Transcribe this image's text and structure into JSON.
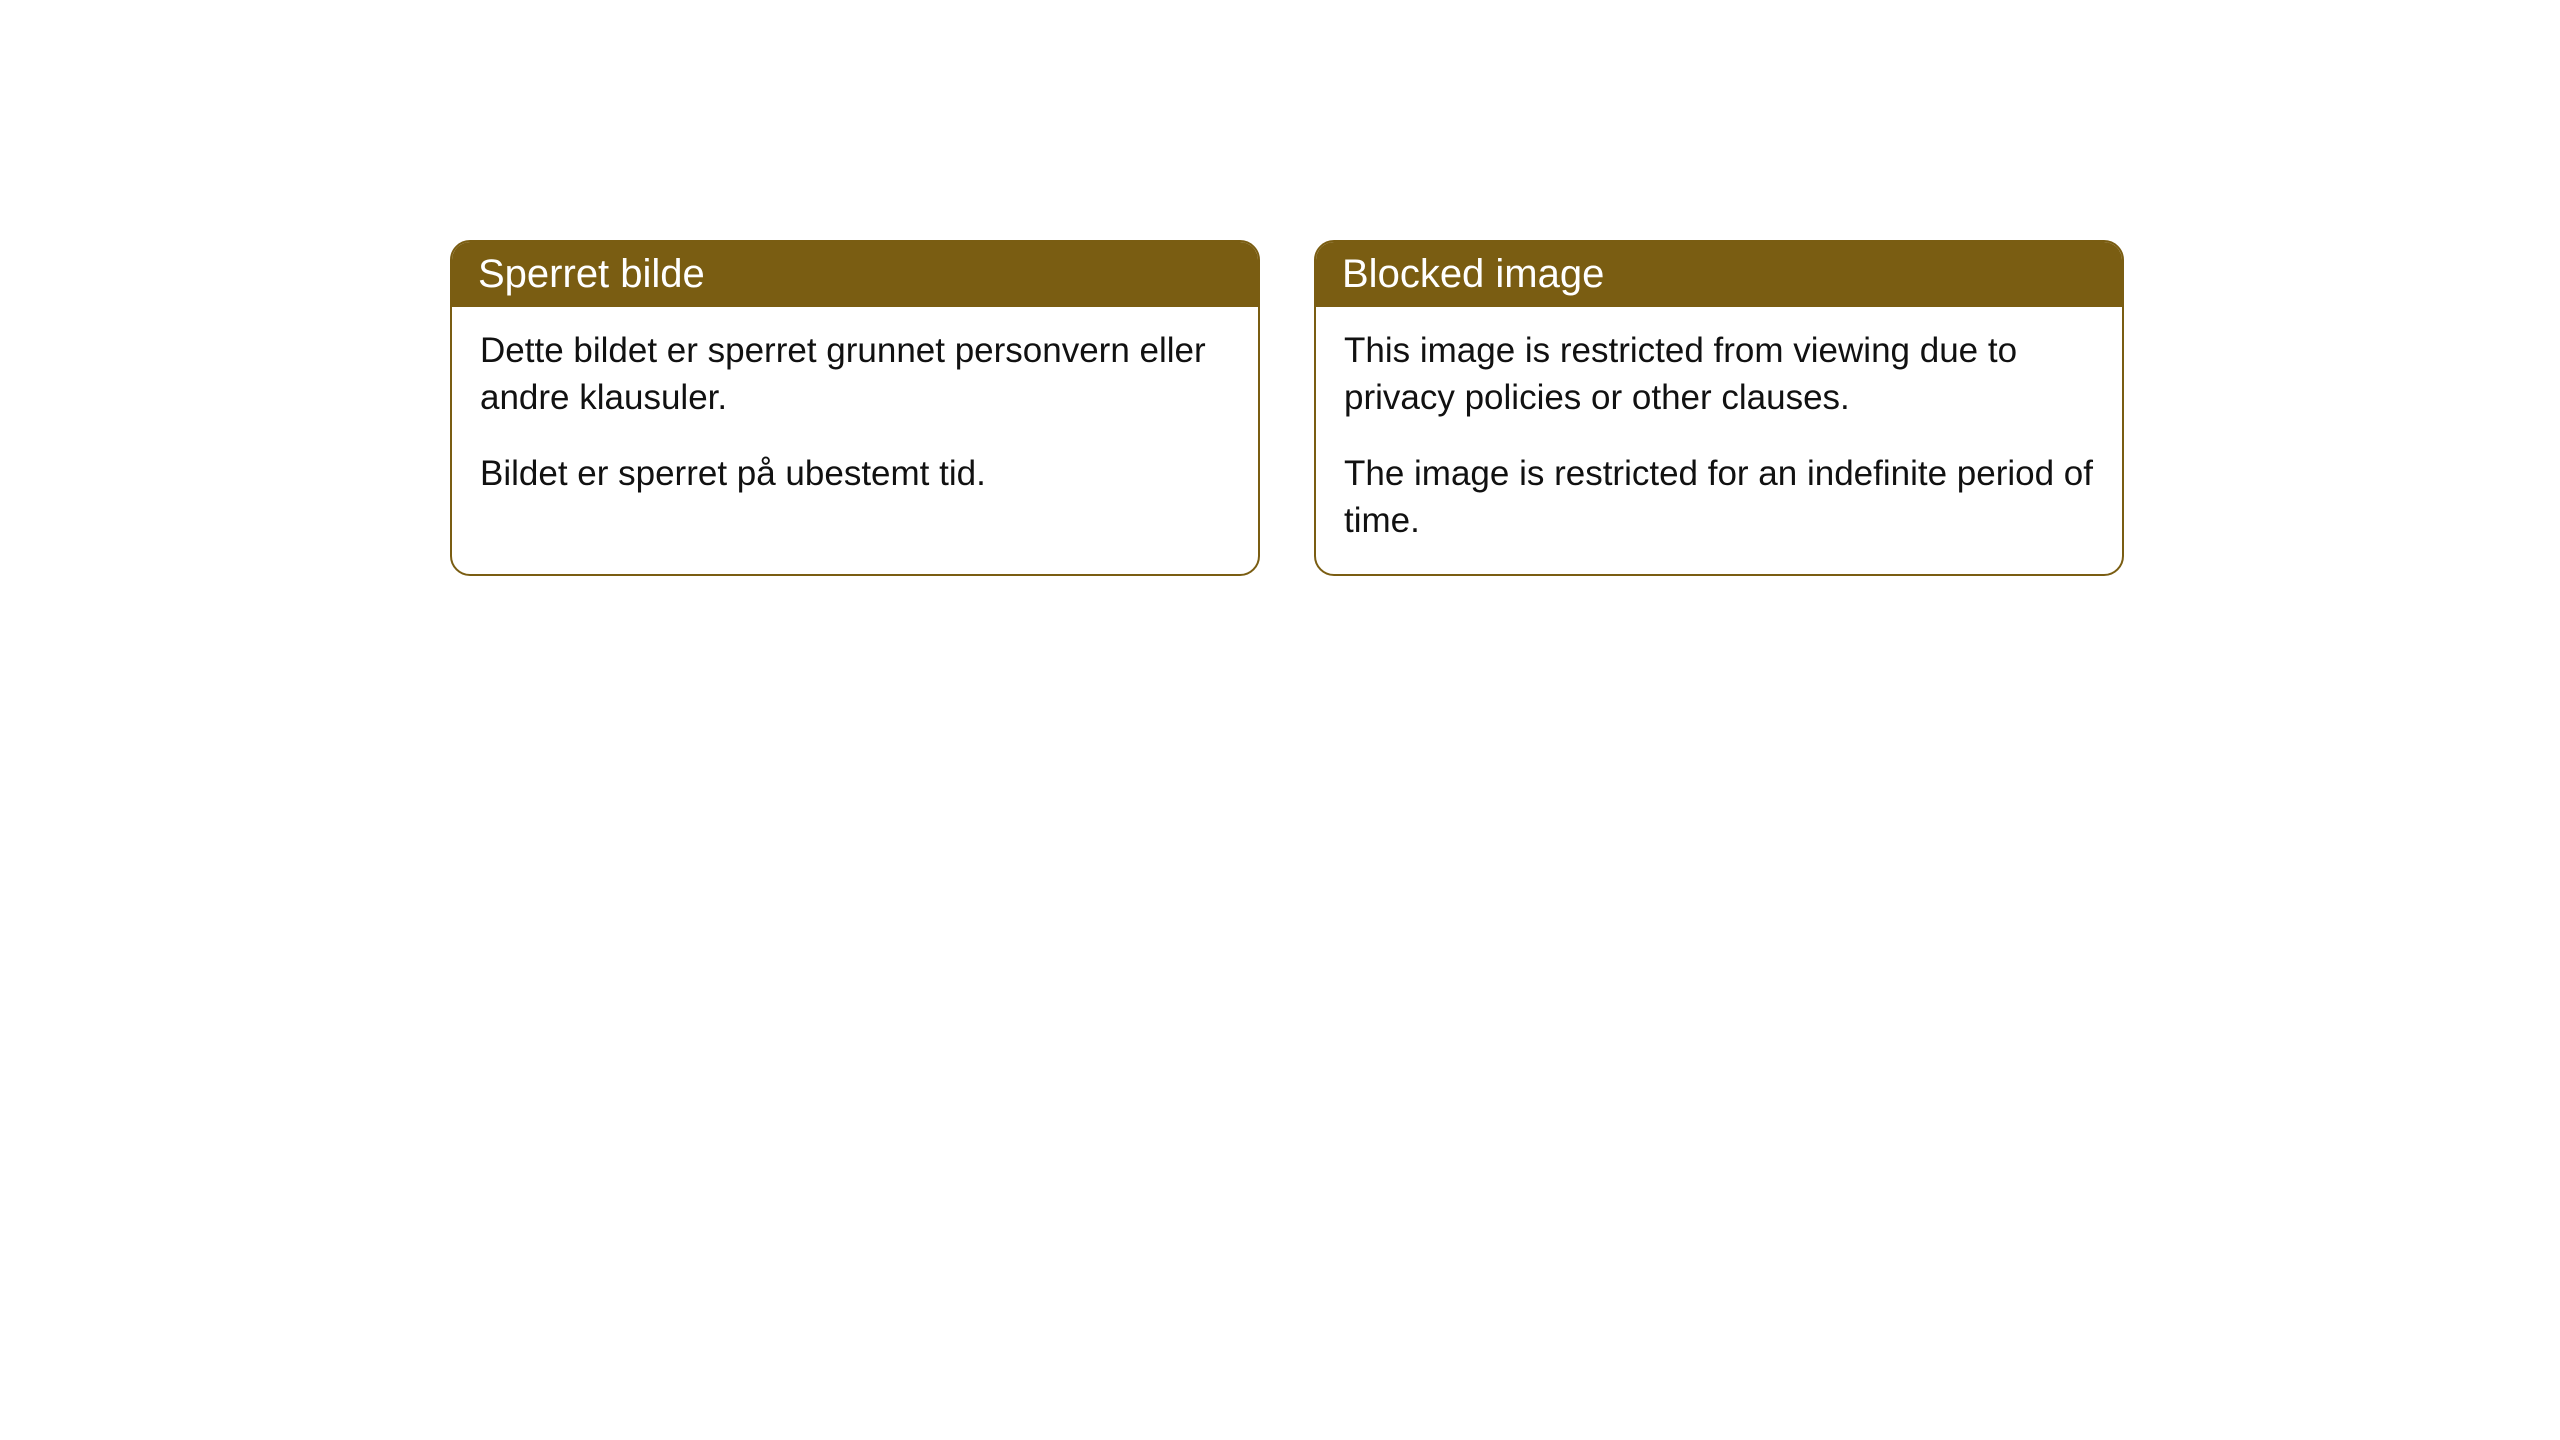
{
  "cards": [
    {
      "title": "Sperret bilde",
      "paragraph1": "Dette bildet er sperret grunnet personvern eller andre klausuler.",
      "paragraph2": "Bildet er sperret på ubestemt tid."
    },
    {
      "title": "Blocked image",
      "paragraph1": "This image is restricted from viewing due to privacy policies or other clauses.",
      "paragraph2": "The image is restricted for an indefinite period of time."
    }
  ],
  "styling": {
    "header_background": "#7a5d12",
    "header_text_color": "#ffffff",
    "border_color": "#7a5d12",
    "body_text_color": "#111111",
    "page_background": "#ffffff",
    "border_radius": 20,
    "header_fontsize": 40,
    "body_fontsize": 35
  }
}
